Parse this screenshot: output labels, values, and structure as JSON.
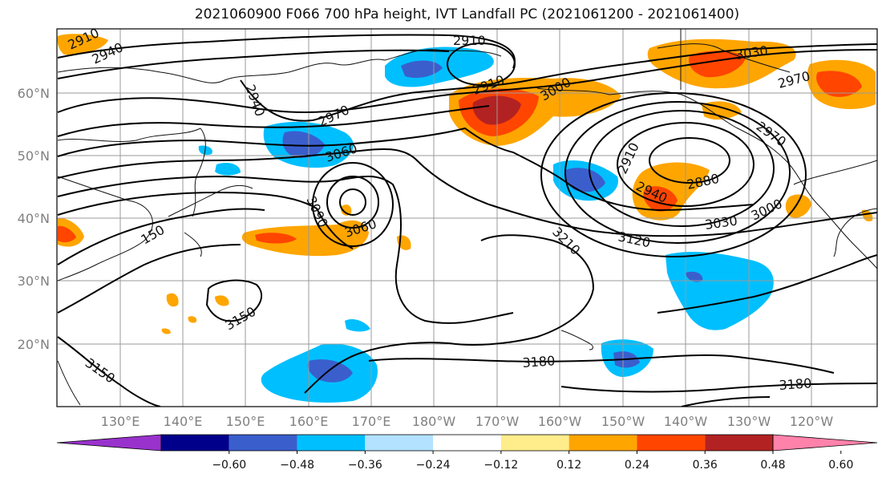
{
  "title": "2021060900 F066 700 hPa height, IVT Landfall PC (2021061200 - 2021061400)",
  "lat_labels": [
    "60°N",
    "50°N",
    "40°N",
    "30°N",
    "20°N"
  ],
  "lon_labels": [
    "130°E",
    "140°E",
    "150°E",
    "160°E",
    "170°E",
    "180°W",
    "170°W",
    "160°W",
    "150°W",
    "140°W",
    "130°W",
    "120°W"
  ],
  "colorbar": {
    "ticks": [
      "−0.60",
      "−0.48",
      "−0.36",
      "−0.24",
      "−0.12",
      "0.12",
      "0.24",
      "0.36",
      "0.48",
      "0.60"
    ],
    "colors": [
      "#9932cc",
      "#00008b",
      "#3a5fcd",
      "#00bfff",
      "#b2e2ff",
      "#ffffff",
      "#ffec8b",
      "#ffa500",
      "#ff4500",
      "#b22222",
      "#ff82ab"
    ]
  },
  "contour_labels": [
    "2910",
    "2940",
    "2910",
    "2940",
    "2970",
    "2910",
    "3000",
    "3030",
    "2970",
    "3060",
    "3090",
    "3060",
    "2970",
    "2910",
    "2880",
    "2940",
    "3000",
    "3030",
    "3120",
    "3210",
    "150",
    "3150",
    "3150",
    "3180",
    "3180"
  ]
}
